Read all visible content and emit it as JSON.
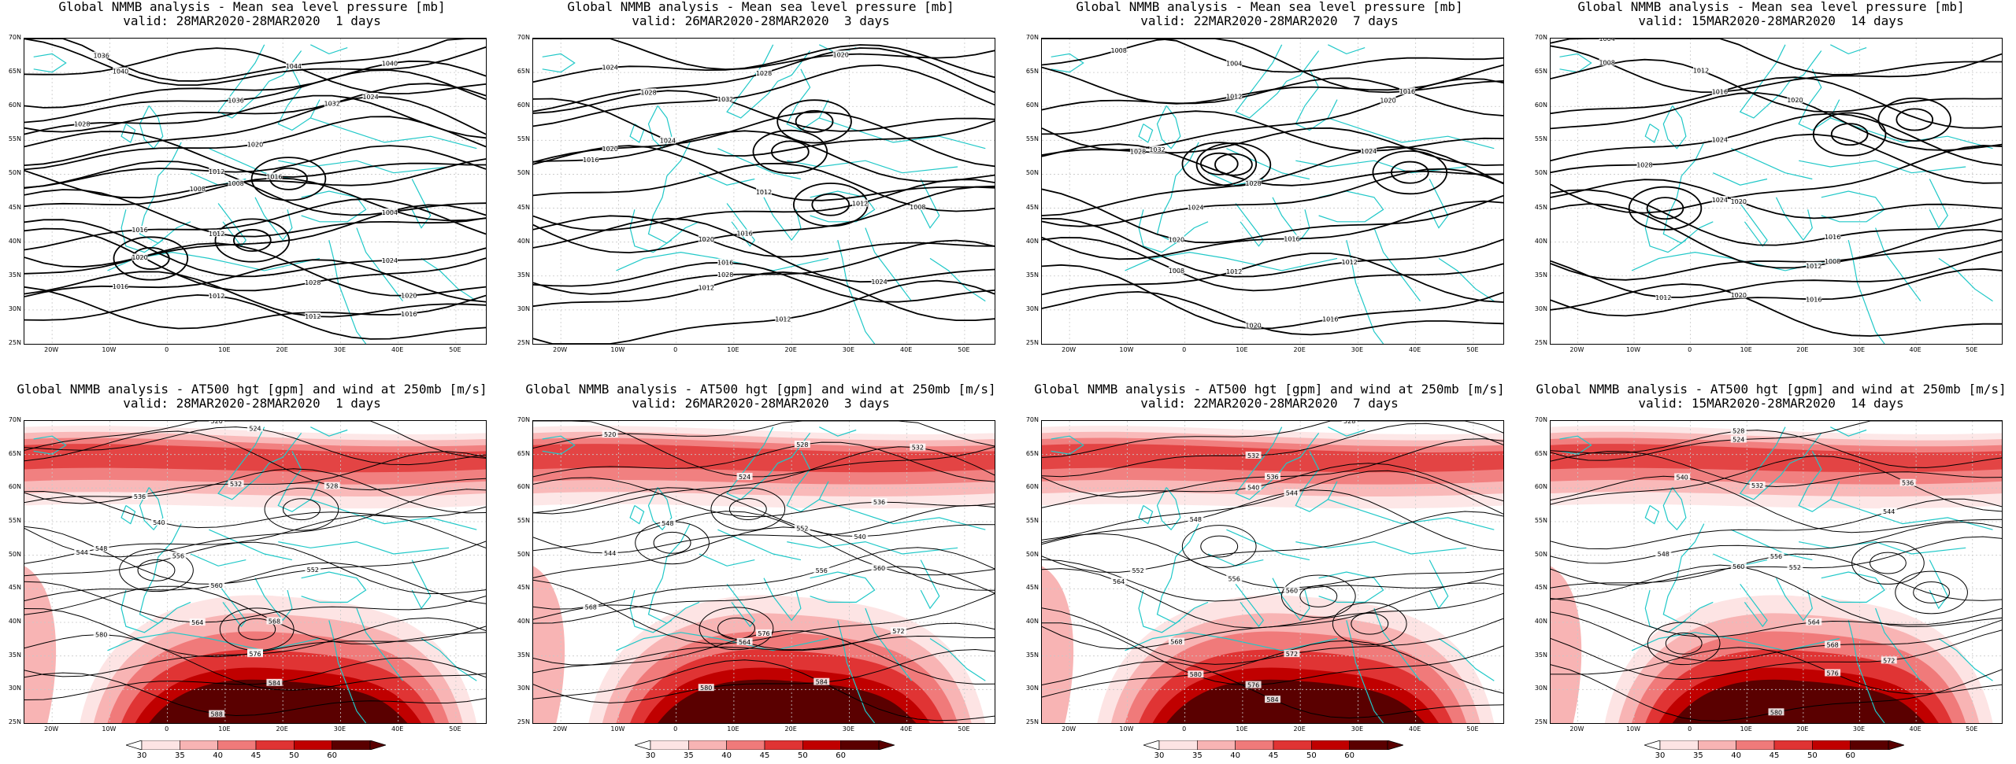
{
  "top_panels": [
    {
      "title1": "Global NMMB analysis - Mean sea level pressure [mb]",
      "title2": "valid: 28MAR2020-28MAR2020  1 days"
    },
    {
      "title1": "Global NMMB analysis - Mean sea level pressure [mb]",
      "title2": "valid: 26MAR2020-28MAR2020  3 days"
    },
    {
      "title1": "Global NMMB analysis - Mean sea level pressure [mb]",
      "title2": "valid: 22MAR2020-28MAR2020  7 days"
    },
    {
      "title1": "Global NMMB analysis - Mean sea level pressure [mb]",
      "title2": "valid: 15MAR2020-28MAR2020  14 days"
    }
  ],
  "bottom_panels": [
    {
      "title1": "Global NMMB analysis - AT500 hgt [gpm] and wind at 250mb [m/s]",
      "title2": "valid: 28MAR2020-28MAR2020  1 days"
    },
    {
      "title1": "Global NMMB analysis - AT500 hgt [gpm] and wind at 250mb [m/s]",
      "title2": "valid: 26MAR2020-28MAR2020  3 days"
    },
    {
      "title1": "Global NMMB analysis - AT500 hgt [gpm] and wind at 250mb [m/s]",
      "title2": "valid: 22MAR2020-28MAR2020  7 days"
    },
    {
      "title1": "Global NMMB analysis - AT500 hgt [gpm] and wind at 250mb [m/s]",
      "title2": "valid: 15MAR2020-28MAR2020  14 days"
    }
  ],
  "lat_labels": [
    "70N",
    "65N",
    "60N",
    "55N",
    "50N",
    "45N",
    "40N",
    "35N",
    "30N",
    "25N"
  ],
  "lon_labels": [
    "20W",
    "10W",
    "0",
    "10E",
    "20E",
    "30E",
    "40E",
    "50E"
  ],
  "colorbar_labels": [
    "30",
    "35",
    "40",
    "45",
    "50",
    "60"
  ],
  "colors": {
    "coast": "#20c8c8",
    "contour": "#000000",
    "grid": "#c8c8c8",
    "wind_shades": [
      "#fde4e4",
      "#f8b4b4",
      "#f07a7a",
      "#e03434",
      "#c00000",
      "#5a0000"
    ]
  },
  "top_contour_labels": [
    [
      "1036",
      "1040",
      "1044",
      "1040",
      "1036",
      "1032",
      "1028",
      "1024",
      "1020",
      "1016",
      "1012",
      "1008",
      "1004",
      "1008",
      "1012",
      "1016",
      "1020",
      "1024",
      "1028",
      "1020",
      "1016",
      "1012",
      "1016",
      "1012"
    ],
    [
      "1020",
      "1024",
      "1028",
      "1032",
      "1028",
      "1024",
      "1020",
      "1016",
      "1012",
      "1008",
      "1012",
      "1016",
      "1020",
      "1024",
      "1028",
      "1016",
      "1012",
      "1012"
    ],
    [
      "1004",
      "1008",
      "1012",
      "1016",
      "1020",
      "1024",
      "1028",
      "1032",
      "1028",
      "1024",
      "1020",
      "1016",
      "1012",
      "1008",
      "1012",
      "1016",
      "1020"
    ],
    [
      "1004",
      "1008",
      "1012",
      "1016",
      "1020",
      "1024",
      "1028",
      "1024",
      "1020",
      "1016",
      "1012",
      "1008",
      "1012",
      "1016",
      "1020"
    ]
  ],
  "bottom_contour_labels": [
    [
      "520",
      "524",
      "528",
      "532",
      "536",
      "540",
      "544",
      "548",
      "552",
      "556",
      "560",
      "564",
      "568",
      "572",
      "576",
      "580",
      "584",
      "588"
    ],
    [
      "520",
      "524",
      "528",
      "532",
      "536",
      "540",
      "544",
      "548",
      "552",
      "556",
      "560",
      "564",
      "568",
      "572",
      "576",
      "580",
      "584"
    ],
    [
      "528",
      "532",
      "536",
      "540",
      "544",
      "548",
      "552",
      "556",
      "560",
      "564",
      "568",
      "572",
      "576",
      "580",
      "584"
    ],
    [
      "524",
      "528",
      "532",
      "536",
      "540",
      "544",
      "548",
      "552",
      "556",
      "560",
      "564",
      "568",
      "572",
      "576",
      "580"
    ]
  ]
}
